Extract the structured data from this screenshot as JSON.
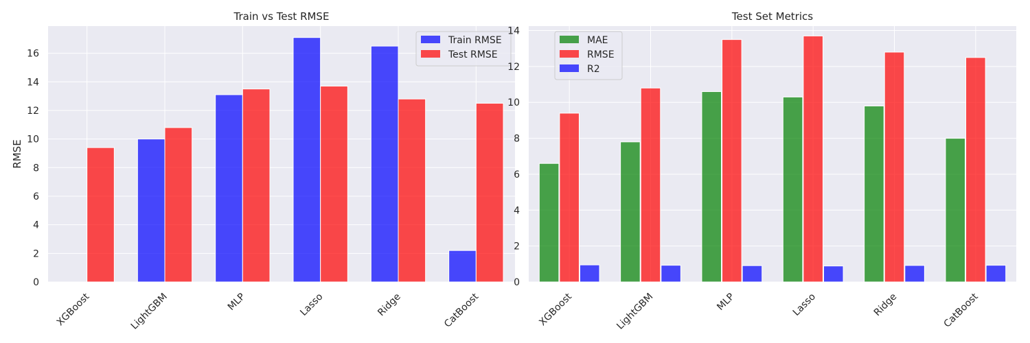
{
  "chart_data": [
    {
      "type": "bar",
      "title": "Train vs Test RMSE",
      "xlabel": "",
      "ylabel": "RMSE",
      "ylim": [
        0,
        17.9
      ],
      "yticks": [
        0,
        2,
        4,
        6,
        8,
        10,
        12,
        14,
        16
      ],
      "grid": true,
      "legend_position": "top-right",
      "categories": [
        "XGBoost",
        "LightGBM",
        "MLP",
        "Lasso",
        "Ridge",
        "CatBoost"
      ],
      "series": [
        {
          "name": "Train RMSE",
          "color": "#0000ff",
          "values": [
            0.0,
            10.0,
            13.1,
            17.1,
            16.5,
            2.2
          ]
        },
        {
          "name": "Test RMSE",
          "color": "#ff0000",
          "values": [
            9.4,
            10.8,
            13.5,
            13.7,
            12.8,
            12.5
          ]
        }
      ]
    },
    {
      "type": "bar",
      "title": "Test Set Metrics",
      "xlabel": "",
      "ylabel": "",
      "ylim": [
        0,
        14.25
      ],
      "yticks": [
        0,
        2,
        4,
        6,
        8,
        10,
        12,
        14
      ],
      "grid": true,
      "legend_position": "top-left",
      "categories": [
        "XGBoost",
        "LightGBM",
        "MLP",
        "Lasso",
        "Ridge",
        "CatBoost"
      ],
      "series": [
        {
          "name": "MAE",
          "color": "#008000",
          "values": [
            6.6,
            7.8,
            10.6,
            10.3,
            9.8,
            8.0
          ]
        },
        {
          "name": "RMSE",
          "color": "#ff0000",
          "values": [
            9.4,
            10.8,
            13.5,
            13.7,
            12.8,
            12.5
          ]
        },
        {
          "name": "R2",
          "color": "#0000ff",
          "values": [
            0.95,
            0.93,
            0.91,
            0.89,
            0.92,
            0.93
          ]
        }
      ]
    }
  ]
}
